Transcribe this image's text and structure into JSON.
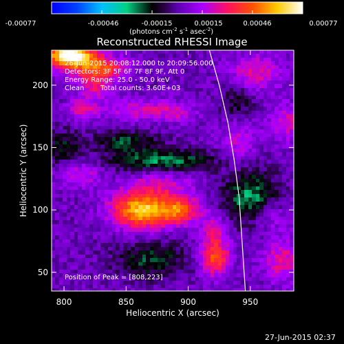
{
  "chart_data": {
    "type": "heatmap",
    "title": "Reconstructed RHESSI Image",
    "xlabel": "Heliocentric X (arcsec)",
    "ylabel": "Heliocentric Y (arcsec)",
    "xlim": [
      790,
      985
    ],
    "ylim": [
      35,
      228
    ],
    "x_ticks": [
      "800",
      "850",
      "900",
      "950"
    ],
    "y_ticks": [
      "50",
      "100",
      "150",
      "200"
    ],
    "colorbar": {
      "range": [
        -0.00077,
        0.00077
      ],
      "tick_labels": [
        "-0.00077",
        "-0.00046",
        "-0.00015",
        "0.00015",
        "0.00046",
        "0.00077"
      ],
      "unit_label": "(photons cm",
      "unit_sup1": "-2",
      "unit_mid": " s",
      "unit_sup2": "-1",
      "unit_end": " asec",
      "unit_sup3": "-2",
      "unit_close": ")"
    },
    "annotations": {
      "time_range": "26-Jun-2015 20:08:12.000 to 20:09:56.000",
      "detectors": "Detectors: 3F 5F 6F 7F 8F 9F, Att 0",
      "energy": "Energy Range: 25.0 - 50.0 keV",
      "method": "Clean",
      "counts": "Total counts: 3.60E+03",
      "peak": "Position of Peak = [808,223]"
    },
    "peak_position": [
      808,
      223
    ],
    "limb_arc": [
      [
        917,
        228
      ],
      [
        925,
        200
      ],
      [
        932,
        170
      ],
      [
        937,
        140
      ],
      [
        941,
        110
      ],
      [
        943,
        80
      ],
      [
        945,
        50
      ],
      [
        946,
        35
      ]
    ],
    "colormap": "Rainbow + white (IDL color table 5)",
    "value_range": [
      -0.00077,
      0.00077
    ],
    "blobs": [
      {
        "x": 805,
        "y": 224,
        "sx": 14,
        "sy": 7,
        "v": 0.00077
      },
      {
        "x": 830,
        "y": 214,
        "sx": 16,
        "sy": 6,
        "v": 0.00034
      },
      {
        "x": 825,
        "y": 200,
        "sx": 10,
        "sy": 8,
        "v": 0.00026
      },
      {
        "x": 815,
        "y": 180,
        "sx": 8,
        "sy": 6,
        "v": 0.00022
      },
      {
        "x": 860,
        "y": 180,
        "sx": 20,
        "sy": 6,
        "v": 0.00018
      },
      {
        "x": 890,
        "y": 178,
        "sx": 12,
        "sy": 5,
        "v": 0.00015
      },
      {
        "x": 955,
        "y": 210,
        "sx": 14,
        "sy": 10,
        "v": 0.00022
      },
      {
        "x": 980,
        "y": 170,
        "sx": 10,
        "sy": 10,
        "v": 0.0002
      },
      {
        "x": 940,
        "y": 155,
        "sx": 10,
        "sy": 14,
        "v": 0.00016
      },
      {
        "x": 812,
        "y": 128,
        "sx": 12,
        "sy": 7,
        "v": 0.0002
      },
      {
        "x": 862,
        "y": 100,
        "sx": 16,
        "sy": 10,
        "v": 0.0006
      },
      {
        "x": 893,
        "y": 100,
        "sx": 12,
        "sy": 8,
        "v": 0.0004
      },
      {
        "x": 878,
        "y": 120,
        "sx": 18,
        "sy": 6,
        "v": 0.00018
      },
      {
        "x": 922,
        "y": 62,
        "sx": 8,
        "sy": 10,
        "v": 0.00042
      },
      {
        "x": 922,
        "y": 85,
        "sx": 8,
        "sy": 8,
        "v": 0.0002
      },
      {
        "x": 975,
        "y": 60,
        "sx": 10,
        "sy": 12,
        "v": 0.00024
      },
      {
        "x": 965,
        "y": 95,
        "sx": 10,
        "sy": 8,
        "v": 0.00016
      },
      {
        "x": 880,
        "y": 140,
        "sx": 30,
        "sy": 6,
        "v": -0.00028
      },
      {
        "x": 850,
        "y": 155,
        "sx": 18,
        "sy": 6,
        "v": -0.00022
      },
      {
        "x": 950,
        "y": 110,
        "sx": 15,
        "sy": 15,
        "v": -0.0003
      },
      {
        "x": 870,
        "y": 60,
        "sx": 20,
        "sy": 10,
        "v": -0.00022
      },
      {
        "x": 940,
        "y": 185,
        "sx": 10,
        "sy": 10,
        "v": -0.00016
      },
      {
        "x": 800,
        "y": 150,
        "sx": 10,
        "sy": 10,
        "v": -0.00018
      }
    ]
  },
  "timestamp": "27-Jun-2015 02:37"
}
